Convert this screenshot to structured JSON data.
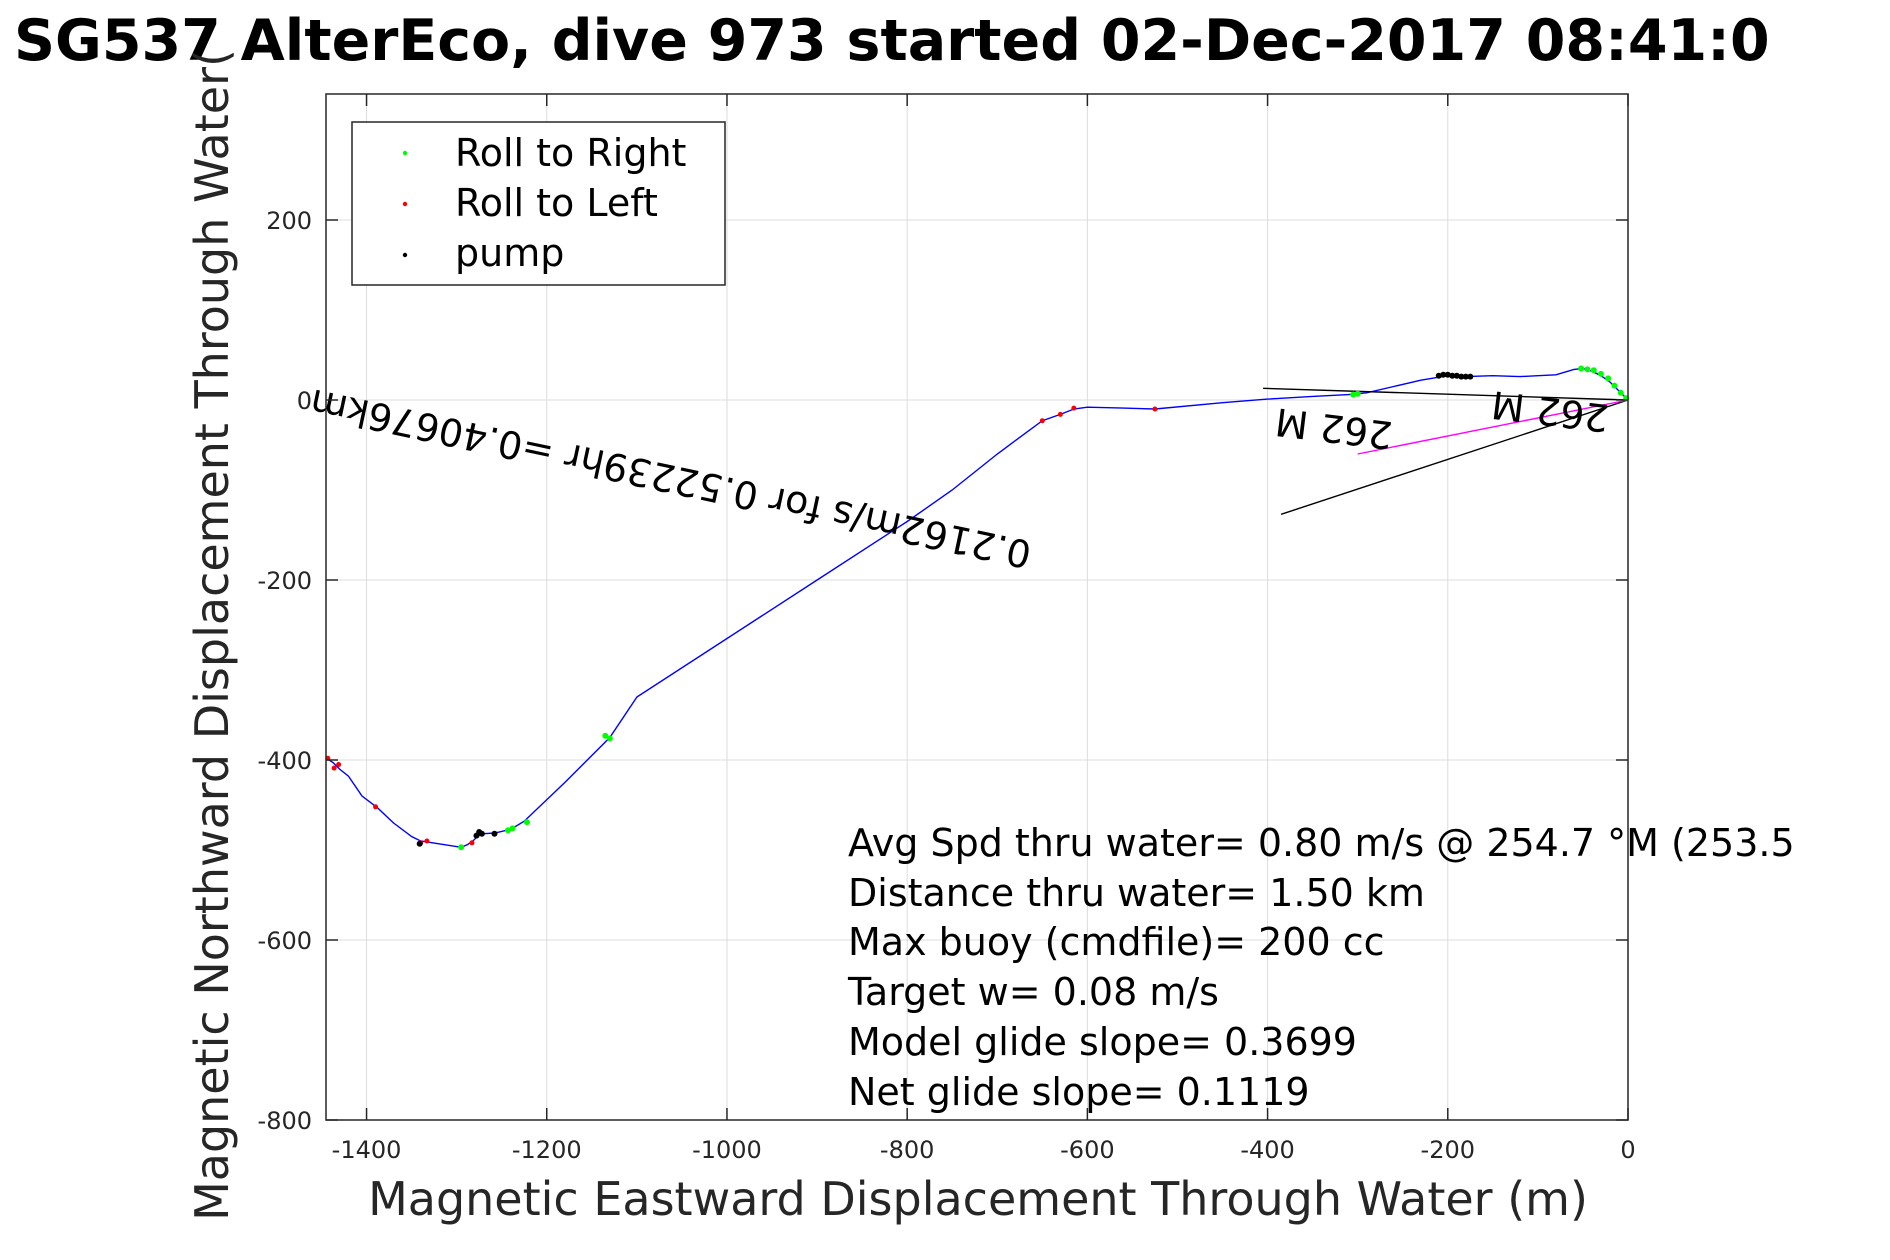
{
  "chart_data": {
    "type": "line",
    "title": "SG537 AlterEco, dive 973 started 02-Dec-2017 08:41:0",
    "xlabel": "Magnetic Eastward Displacement Through Water (m)",
    "ylabel": "Magnetic Northward Displacement Through Water(",
    "xlim": [
      -1445,
      0
    ],
    "ylim": [
      -800,
      340
    ],
    "grid": true,
    "legend_position": "top-left",
    "x_ticks": [
      "-1400",
      "-1200",
      "-1000",
      "-800",
      "-600",
      "-400",
      "-200",
      "0"
    ],
    "x_tick_values": [
      -1400,
      -1200,
      -1000,
      -800,
      -600,
      -400,
      -200,
      0
    ],
    "y_ticks": [
      "200",
      "0",
      "-200",
      "-400",
      "-600",
      "-800"
    ],
    "y_tick_values": [
      200,
      0,
      -200,
      -400,
      -600,
      -800
    ],
    "legend": [
      {
        "label": "Roll to Right",
        "color": "#00ff00"
      },
      {
        "label": "Roll to Left",
        "color": "#ff0000"
      },
      {
        "label": "pump",
        "color": "#000000"
      }
    ],
    "track": {
      "color": "#0000ff",
      "x": [
        0,
        -10,
        -20,
        -30,
        -40,
        -50,
        -60,
        -80,
        -100,
        -120,
        -150,
        -180,
        -200,
        -230,
        -260,
        -290,
        -310,
        -350,
        -400,
        -450,
        -525,
        -560,
        -600,
        -615,
        -630,
        -650,
        -700,
        -750,
        -800,
        -900,
        -1000,
        -1100,
        -1130,
        -1180,
        -1225,
        -1240,
        -1257,
        -1272,
        -1277,
        -1282,
        -1288,
        -1295,
        -1340,
        -1350,
        -1370,
        -1388,
        -1405,
        -1420,
        -1430,
        -1437,
        -1445
      ],
      "y": [
        0,
        10,
        20,
        27,
        32,
        35,
        34,
        28,
        27,
        26,
        27,
        26,
        27,
        22,
        15,
        8,
        6,
        4,
        1,
        -3,
        -10,
        -9,
        -8,
        -10,
        -16,
        -23,
        -60,
        -100,
        -135,
        -200,
        -265,
        -330,
        -375,
        -425,
        -468,
        -477,
        -481,
        -482,
        -485,
        -490,
        -494,
        -497,
        -490,
        -485,
        -470,
        -453,
        -440,
        -418,
        -410,
        -403,
        -398
      ]
    },
    "roll_right": {
      "x": [
        -2,
        -8,
        -15,
        -22,
        -30,
        -38,
        -45,
        -52,
        -300,
        -305,
        -1130,
        -1135,
        -1222,
        -1238,
        -1243,
        -1295
      ],
      "y": [
        2,
        8,
        16,
        24,
        29,
        33,
        34,
        35,
        7,
        6,
        -376,
        -373,
        -469,
        -476,
        -478,
        -497
      ]
    },
    "roll_left": {
      "x": [
        -525,
        -630,
        -650,
        -615,
        -1283,
        -1340,
        -1333,
        -1390,
        -1431,
        -1436,
        -1443
      ],
      "y": [
        -10,
        -16,
        -23,
        -9,
        -492,
        -492,
        -490,
        -452,
        -405,
        -409,
        -398
      ]
    },
    "pump": {
      "x": [
        -210,
        -205,
        -200,
        -195,
        -190,
        -185,
        -180,
        -175,
        -1272,
        -1275,
        -1278,
        -1258,
        -1341
      ],
      "y": [
        27,
        28,
        28,
        27,
        27,
        26,
        26,
        26,
        -482,
        -480,
        -484,
        -482,
        -493
      ]
    },
    "current_lines": [
      {
        "x": [
          0,
          -405
        ],
        "y": [
          0,
          13
        ],
        "color": "#000000"
      },
      {
        "x": [
          0,
          -385
        ],
        "y": [
          0,
          -127
        ],
        "color": "#000000"
      },
      {
        "x": [
          0,
          -300
        ],
        "y": [
          0,
          -60
        ],
        "color": "#ff00ff"
      }
    ],
    "annotations": [
      {
        "text": "0.2162m/s for 0.52239hr =0.40676km",
        "x": -660,
        "y": -158,
        "rotation": 12,
        "mirrored": true
      },
      {
        "text": "262 M",
        "x": -20,
        "y": -6,
        "rotation": 7,
        "mirrored": true
      },
      {
        "text": "262 M",
        "x": -260,
        "y": -25,
        "rotation": 7,
        "mirrored": true
      }
    ],
    "stats": [
      "Avg Spd thru water=  0.80 m/s @ 254.7 °M (253.5",
      "Distance thru water=  1.50 km",
      "Max buoy (cmdfile)= 200 cc",
      "Target w= 0.08 m/s",
      "Model glide slope= 0.3699",
      "Net glide slope= 0.1119"
    ]
  }
}
